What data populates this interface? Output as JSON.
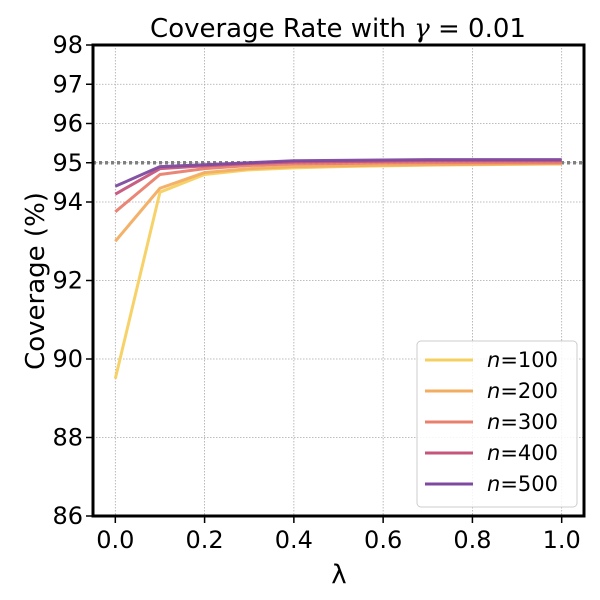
{
  "chart_data": {
    "type": "line",
    "title_prefix": "Coverage Rate with ",
    "title_gamma_symbol": "γ",
    "title_suffix": " = 0.01",
    "xlabel": "λ",
    "ylabel": "Coverage (%)",
    "xlim": [
      -0.05,
      1.05
    ],
    "ylim": [
      86,
      98
    ],
    "x_ticks": [
      0.0,
      0.2,
      0.4,
      0.6,
      0.8,
      1.0
    ],
    "x_tick_labels": [
      "0.0",
      "0.2",
      "0.4",
      "0.6",
      "0.8",
      "1.0"
    ],
    "y_ticks": [
      86,
      88,
      90,
      92,
      94,
      95,
      96,
      97,
      98
    ],
    "y_tick_labels": [
      "86",
      "88",
      "90",
      "92",
      "94",
      "95",
      "96",
      "97",
      "98"
    ],
    "grid": true,
    "reference_line": {
      "y": 95,
      "style": "dotted",
      "color": "#808080"
    },
    "legend_position": "lower-right",
    "x": [
      0.0,
      0.1,
      0.2,
      0.3,
      0.4,
      0.5,
      0.6,
      0.7,
      0.8,
      0.9,
      1.0
    ],
    "series": [
      {
        "name": "n=100",
        "legend_n": "n",
        "legend_value": "=100",
        "color": "#f5d061",
        "values": [
          89.5,
          94.25,
          94.7,
          94.82,
          94.87,
          94.9,
          94.92,
          94.94,
          94.95,
          94.96,
          94.97
        ]
      },
      {
        "name": "n=200",
        "legend_n": "n",
        "legend_value": "=200",
        "color": "#f2ad62",
        "values": [
          93.0,
          94.35,
          94.75,
          94.85,
          94.9,
          94.92,
          94.94,
          94.95,
          94.96,
          94.97,
          94.97
        ]
      },
      {
        "name": "n=300",
        "legend_n": "n",
        "legend_value": "=300",
        "color": "#e9806f",
        "values": [
          93.75,
          94.7,
          94.85,
          94.93,
          94.97,
          94.98,
          95.0,
          95.0,
          95.0,
          95.0,
          95.0
        ]
      },
      {
        "name": "n=400",
        "legend_n": "n",
        "legend_value": "=400",
        "color": "#c6557e",
        "values": [
          94.2,
          94.85,
          94.92,
          94.98,
          95.02,
          95.03,
          95.04,
          95.05,
          95.05,
          95.05,
          95.05
        ]
      },
      {
        "name": "n=500",
        "legend_n": "n",
        "legend_value": "=500",
        "color": "#7e4a9f",
        "values": [
          94.4,
          94.9,
          94.95,
          95.0,
          95.05,
          95.06,
          95.07,
          95.08,
          95.08,
          95.08,
          95.08
        ]
      }
    ]
  }
}
